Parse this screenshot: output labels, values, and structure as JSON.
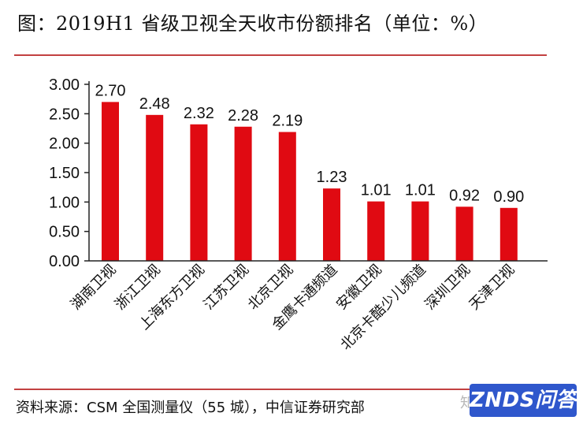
{
  "title": "图：2019H1 省级卫视全天收市份额排名（单位：%）",
  "footer": "资料来源：CSM 全国测量仪（55 城），中信证券研究部",
  "watermark": "ZNDS问答",
  "colors": {
    "bar": "#e00a12",
    "rule": "#c24141",
    "axis": "#222222"
  },
  "chart_data": {
    "type": "bar",
    "title": "",
    "xlabel": "",
    "ylabel": "",
    "categories": [
      "湖南卫视",
      "浙江卫视",
      "上海东方卫视",
      "江苏卫视",
      "北京卫视",
      "金鹰卡通频道",
      "安徽卫视",
      "北京卡酷少儿频道",
      "深圳卫视",
      "天津卫视"
    ],
    "values": [
      2.7,
      2.48,
      2.32,
      2.28,
      2.19,
      1.23,
      1.01,
      1.01,
      0.92,
      0.9
    ],
    "value_labels": [
      "2.70",
      "2.48",
      "2.32",
      "2.28",
      "2.19",
      "1.23",
      "1.01",
      "1.01",
      "0.92",
      "0.90"
    ],
    "ylim": [
      0,
      3
    ],
    "yticks": [
      "0.00",
      "0.50",
      "1.00",
      "1.50",
      "2.00",
      "2.50",
      "3.00"
    ],
    "grid": false,
    "legend": "none"
  }
}
